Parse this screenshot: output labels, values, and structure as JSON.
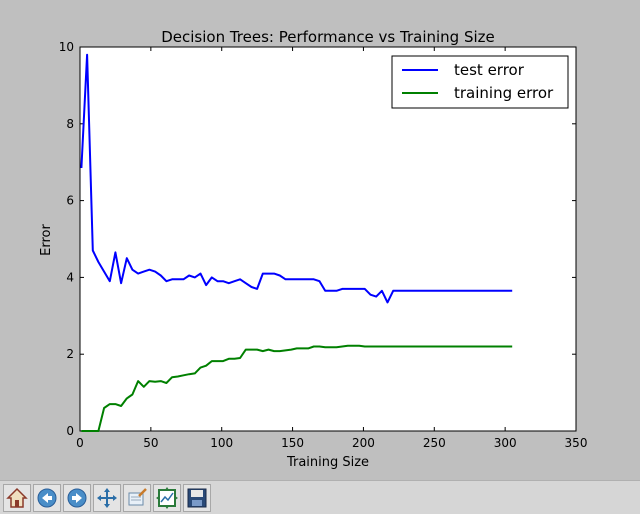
{
  "chart_data": {
    "type": "line",
    "title": "Decision Trees: Performance vs Training Size",
    "xlabel": "Training Size",
    "ylabel": "Error",
    "xlim": [
      0,
      350
    ],
    "ylim": [
      0,
      10
    ],
    "xticks": [
      "0",
      "50",
      "100",
      "150",
      "200",
      "250",
      "300",
      "350"
    ],
    "yticks": [
      "0",
      "2",
      "4",
      "6",
      "8",
      "10"
    ],
    "legend_position": "top-right",
    "grid": false,
    "series": [
      {
        "name": "test error",
        "color": "#0000ff",
        "x": [
          1,
          5,
          9,
          13,
          17,
          21,
          25,
          29,
          33,
          37,
          41,
          45,
          49,
          53,
          57,
          61,
          65,
          69,
          73,
          77,
          81,
          85,
          89,
          93,
          97,
          101,
          105,
          109,
          113,
          117,
          121,
          125,
          129,
          133,
          137,
          141,
          145,
          149,
          153,
          157,
          161,
          165,
          169,
          173,
          177,
          181,
          185,
          189,
          193,
          197,
          201,
          205,
          209,
          213,
          217,
          221,
          225,
          229,
          233,
          237,
          241,
          245,
          249,
          253,
          257,
          261,
          265,
          269,
          273,
          277,
          281,
          285,
          289,
          293,
          297,
          301,
          305
        ],
        "y": [
          6.85,
          9.8,
          4.7,
          4.4,
          4.15,
          3.9,
          4.65,
          3.85,
          4.5,
          4.2,
          4.1,
          4.15,
          4.2,
          4.15,
          4.05,
          3.9,
          3.95,
          3.95,
          3.95,
          4.05,
          4.0,
          4.1,
          3.8,
          4.0,
          3.9,
          3.9,
          3.85,
          3.9,
          3.95,
          3.85,
          3.75,
          3.7,
          4.1,
          4.1,
          4.1,
          4.05,
          3.95,
          3.95,
          3.95,
          3.95,
          3.95,
          3.95,
          3.9,
          3.65,
          3.65,
          3.65,
          3.7,
          3.7,
          3.7,
          3.7,
          3.7,
          3.55,
          3.5,
          3.65,
          3.35,
          3.65,
          3.65,
          3.65,
          3.65,
          3.65,
          3.65,
          3.65,
          3.65,
          3.65,
          3.65,
          3.65,
          3.65,
          3.65,
          3.65,
          3.65,
          3.65,
          3.65,
          3.65,
          3.65,
          3.65,
          3.65,
          3.65
        ]
      },
      {
        "name": "training error",
        "color": "#008000",
        "x": [
          1,
          5,
          9,
          13,
          17,
          21,
          25,
          29,
          33,
          37,
          41,
          45,
          49,
          53,
          57,
          61,
          65,
          69,
          73,
          77,
          81,
          85,
          89,
          93,
          97,
          101,
          105,
          109,
          113,
          117,
          121,
          125,
          129,
          133,
          137,
          141,
          145,
          149,
          153,
          157,
          161,
          165,
          169,
          173,
          177,
          181,
          185,
          189,
          193,
          197,
          201,
          205,
          209,
          213,
          217,
          221,
          225,
          229,
          233,
          237,
          241,
          245,
          249,
          253,
          257,
          261,
          265,
          269,
          273,
          277,
          281,
          285,
          289,
          293,
          297,
          301,
          305
        ],
        "y": [
          0.0,
          0.0,
          0.0,
          0.0,
          0.6,
          0.7,
          0.7,
          0.65,
          0.85,
          0.95,
          1.3,
          1.15,
          1.3,
          1.28,
          1.3,
          1.25,
          1.4,
          1.42,
          1.45,
          1.48,
          1.5,
          1.65,
          1.7,
          1.82,
          1.82,
          1.82,
          1.88,
          1.88,
          1.9,
          2.12,
          2.12,
          2.12,
          2.08,
          2.12,
          2.08,
          2.08,
          2.1,
          2.12,
          2.15,
          2.15,
          2.15,
          2.2,
          2.2,
          2.18,
          2.18,
          2.18,
          2.2,
          2.22,
          2.22,
          2.22,
          2.2,
          2.2,
          2.2,
          2.2,
          2.2,
          2.2,
          2.2,
          2.2,
          2.2,
          2.2,
          2.2,
          2.2,
          2.2,
          2.2,
          2.2,
          2.2,
          2.2,
          2.2,
          2.2,
          2.2,
          2.2,
          2.2,
          2.2,
          2.2,
          2.2,
          2.2,
          2.2
        ]
      }
    ]
  },
  "toolbar": {
    "buttons": [
      "home-icon",
      "back-arrow-icon",
      "forward-arrow-icon",
      "pan-arrows-icon",
      "zoom-rect-icon",
      "subplots-config-icon",
      "save-floppy-icon"
    ]
  }
}
